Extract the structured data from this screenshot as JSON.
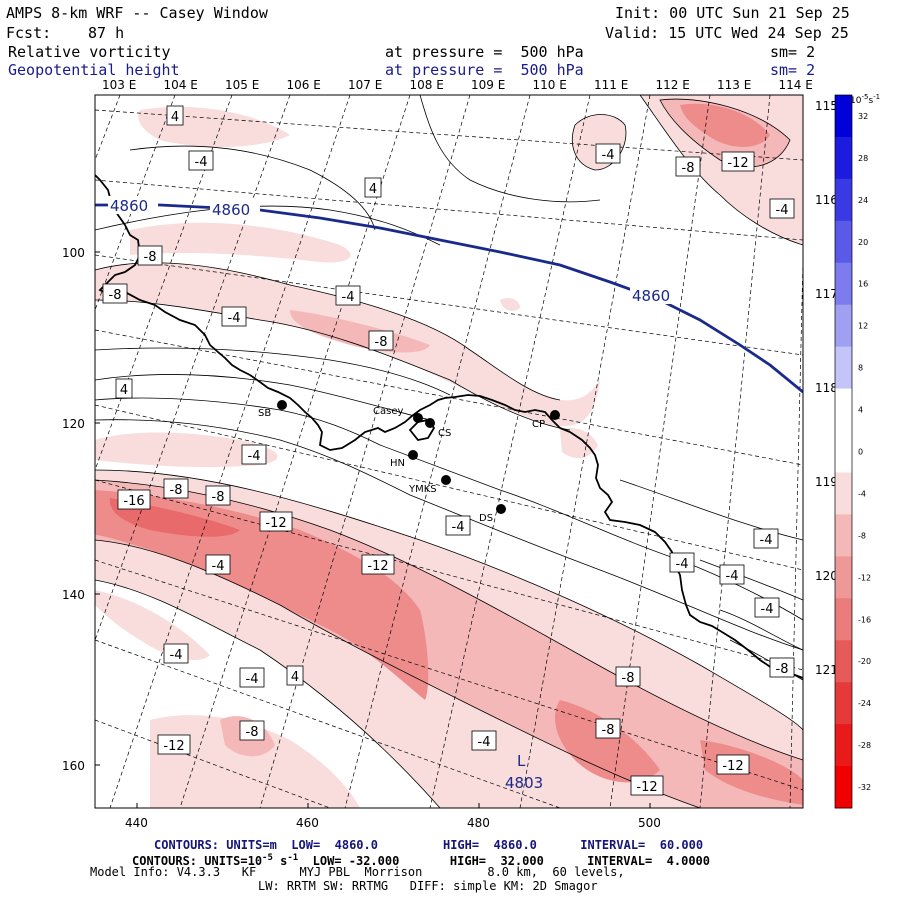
{
  "header": {
    "title": "AMPS 8-km WRF -- Casey Window",
    "init": "Init: 00 UTC Sun 21 Sep 25",
    "fcst_label": "Fcst:",
    "fcst_value": "87 h",
    "valid": "Valid: 15 UTC Wed 24 Sep 25",
    "field1_name": "Relative vorticity",
    "field1_level": "at pressure =  500 hPa",
    "field1_sm": "sm= 2",
    "field2_name": "Geopotential height",
    "field2_level": "at pressure =  500 hPa",
    "field2_sm": "sm= 2"
  },
  "colors": {
    "geopotential": "#1a2a8c",
    "neg_fill_1": "#f9dcdc",
    "neg_fill_2": "#f4b8b8",
    "neg_fill_3": "#ee8c8c",
    "neg_fill_4": "#e85a5a"
  },
  "map": {
    "top_lon_labels": [
      "103 E",
      "104 E",
      "105 E",
      "106 E",
      "107 E",
      "108 E",
      "109 E",
      "110 E",
      "111 E",
      "112 E",
      "113 E",
      "114 E"
    ],
    "right_lon_labels": [
      "115 E",
      "116 E",
      "117 E",
      "118 E",
      "119 E",
      "120 E",
      "121 E"
    ],
    "left_y_labels": [
      "100",
      "120",
      "140",
      "160"
    ],
    "bottom_x_labels": [
      "440",
      "460",
      "480",
      "500"
    ],
    "stations": [
      "SB",
      "Casey",
      "CS",
      "HN",
      "YMKS",
      "DS",
      "CP"
    ],
    "height_labels": [
      "4860",
      "4860",
      "4860"
    ],
    "low_marker": "L",
    "low_value": "4803",
    "contour_labels": [
      "4",
      "-4",
      "4",
      "-4",
      "-12",
      "-8",
      "-4",
      "-8",
      "-4",
      "-8",
      "-4",
      "4",
      "-8",
      "-4",
      "-16",
      "-8",
      "-8",
      "-12",
      "-12",
      "-4",
      "-4",
      "-4",
      "-4",
      "-4",
      "-8",
      "-4",
      "4",
      "-8",
      "-8",
      "-4",
      "-8",
      "-12",
      "-12",
      "-12",
      "-4",
      "-4"
    ]
  },
  "colorbar": {
    "unit": "10",
    "unit_exp": "-5",
    "unit_suffix": "s",
    "unit_suffix_exp": "-1",
    "ticks": [
      "32",
      "28",
      "24",
      "20",
      "16",
      "12",
      "8",
      "4",
      "0",
      "-4",
      "-8",
      "-12",
      "-16",
      "-20",
      "-24",
      "-28",
      "-32"
    ],
    "colors": [
      "#0000d8",
      "#1c1ce0",
      "#3a3ae4",
      "#5a5ae8",
      "#7c7cee",
      "#a0a0f2",
      "#c4c4f8",
      "#ffffff",
      "#ffffff",
      "#f9dcdc",
      "#f4b8b8",
      "#ee9898",
      "#ea7c7c",
      "#e65a5a",
      "#e63a3a",
      "#e81a1a",
      "#f00000"
    ]
  },
  "footer": {
    "line1": "CONTOURS: UNITS=m  LOW=  4860.0         HIGH=  4860.0      INTERVAL=  60.000",
    "line2_a": "CONTOURS: UNITS=10",
    "line2_exp": "-5",
    "line2_b": " s",
    "line2_exp2": "-1",
    "line2_c": "  LOW= -32.000       HIGH=  32.000      INTERVAL=  4.0000",
    "line3": "Model Info: V4.3.3   KF      MYJ PBL  Morrison         8.0 km,  60 levels,",
    "line4": "LW: RRTM SW: RRTMG   DIFF: simple KM: 2D Smagor"
  }
}
